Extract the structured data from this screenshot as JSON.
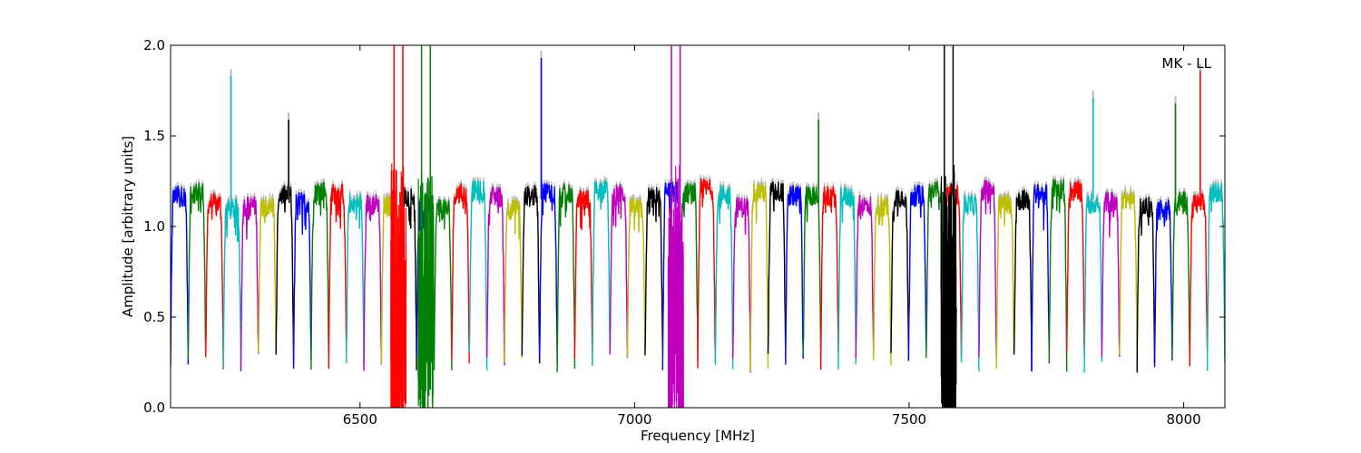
{
  "chart_data": {
    "type": "line",
    "title": "",
    "xlabel": "Frequency [MHz]",
    "ylabel": "Amplitude [arbitrary units]",
    "xlim": [
      6155,
      8075
    ],
    "ylim": [
      0.0,
      2.0
    ],
    "x_ticks": [
      6500,
      7000,
      7500,
      8000
    ],
    "y_ticks": [
      0.0,
      0.5,
      1.0,
      1.5,
      2.0
    ],
    "x_tick_labels": [
      "6500",
      "7000",
      "7500",
      "8000"
    ],
    "y_tick_labels": [
      "0.0",
      "0.5",
      "1.0",
      "1.5",
      "2.0"
    ],
    "annotation": "MK - LL",
    "grid": false,
    "colors": [
      "#0000ff",
      "#008000",
      "#ff0000",
      "#00bfbf",
      "#bf00bf",
      "#bfbf00",
      "#000000"
    ],
    "shadow_color": "#bbbbbb",
    "band_width_mhz": 32,
    "band_start_mhz": 6155,
    "band_shape": {
      "plateau": 1.15,
      "edge_min": 0.25,
      "ripple": 0.06
    },
    "spikes": [
      {
        "x": 6265,
        "y": 1.87
      },
      {
        "x": 6370,
        "y": 1.63
      },
      {
        "x": 6830,
        "y": 1.97
      },
      {
        "x": 7335,
        "y": 1.63
      },
      {
        "x": 7835,
        "y": 1.75
      },
      {
        "x": 7985,
        "y": 1.72
      },
      {
        "x": 8030,
        "y": 1.9
      }
    ],
    "rfi_bursts": [
      {
        "x": 6570,
        "color": "#ff0000",
        "range": [
          0.0,
          2.0
        ]
      },
      {
        "x": 6620,
        "color": "#008000",
        "range": [
          0.1,
          2.0
        ]
      },
      {
        "x": 7075,
        "color": "#bf00bf",
        "range": [
          0.0,
          2.0
        ]
      },
      {
        "x": 7572,
        "color": "#000000",
        "range": [
          0.0,
          2.0
        ]
      }
    ]
  }
}
